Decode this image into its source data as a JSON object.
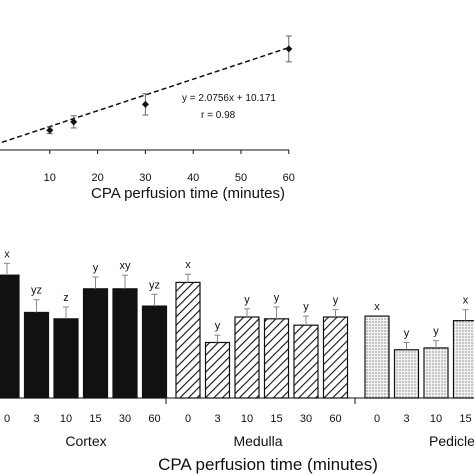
{
  "chart_data": [
    {
      "type": "scatter",
      "xlabel": "CPA perfusion time (minutes)",
      "xlim": [
        0,
        60
      ],
      "xticks": [
        10,
        20,
        30,
        40,
        50,
        60
      ],
      "points": [
        {
          "x": 10,
          "y": 26,
          "err": 4.5
        },
        {
          "x": 15,
          "y": 37,
          "err": 8
        },
        {
          "x": 30,
          "y": 60,
          "err": 14
        },
        {
          "x": 60,
          "y": 133,
          "err": 17
        }
      ],
      "fit_line": {
        "equation": "y = 2.0756x + 10.171",
        "r_label": "r = 0.98"
      }
    },
    {
      "type": "bar",
      "xlabel": "CPA perfusion time (minutes)",
      "groups": [
        {
          "name": "Cortex",
          "pattern": "solid",
          "categories": [
            "0",
            "3",
            "10",
            "15",
            "30",
            "60"
          ],
          "values": [
            13.5,
            9.4,
            8.7,
            12.0,
            12.0,
            10.1
          ],
          "errors": [
            1.3,
            1.4,
            1.3,
            1.3,
            1.5,
            1.3
          ],
          "letters": [
            "x",
            "yz",
            "z",
            "y",
            "xy",
            "yz"
          ]
        },
        {
          "name": "Medulla",
          "pattern": "hatched",
          "categories": [
            "0",
            "3",
            "10",
            "15",
            "30",
            "60"
          ],
          "values": [
            12.7,
            6.1,
            8.9,
            8.7,
            8.0,
            8.9
          ],
          "errors": [
            0.9,
            0.8,
            0.9,
            1.3,
            1.0,
            0.8
          ],
          "letters": [
            "x",
            "y",
            "y",
            "y",
            "y",
            "y"
          ]
        },
        {
          "name": "Pedicle",
          "pattern": "dotted",
          "categories": [
            "0",
            "3",
            "10",
            "15"
          ],
          "values": [
            9.0,
            5.3,
            5.5,
            8.5
          ],
          "errors": [
            0.0,
            0.8,
            0.8,
            1.2
          ],
          "letters": [
            "x",
            "y",
            "y",
            "x"
          ]
        }
      ]
    }
  ]
}
